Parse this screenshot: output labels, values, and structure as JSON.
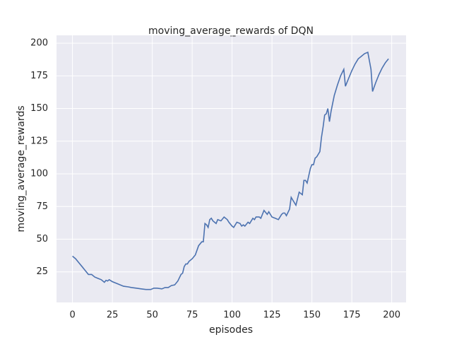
{
  "chart_data": {
    "type": "line",
    "title": "moving_average_rewards of DQN",
    "x_label": "episodes",
    "y_label": "moving_average_rewards",
    "x": [
      0,
      2,
      4,
      6,
      8,
      10,
      12,
      14,
      16,
      18,
      20,
      21,
      22,
      23,
      25,
      28,
      30,
      32,
      35,
      37,
      40,
      43,
      46,
      49,
      51,
      53,
      56,
      58,
      60,
      62,
      64,
      66,
      68,
      69,
      70,
      71,
      72,
      73,
      75,
      77,
      79,
      81,
      82,
      83,
      84,
      85,
      86,
      87,
      88,
      90,
      91,
      93,
      95,
      97,
      98,
      100,
      101,
      103,
      105,
      106,
      107,
      108,
      110,
      111,
      113,
      114,
      115,
      117,
      118,
      120,
      122,
      123,
      125,
      127,
      129,
      131,
      132,
      133,
      134,
      136,
      137,
      138,
      140,
      142,
      143,
      144,
      145,
      146,
      147,
      149,
      150,
      151,
      152,
      153,
      155,
      156,
      157,
      158,
      159,
      160,
      161,
      162,
      164,
      166,
      168,
      170,
      171,
      173,
      175,
      177,
      179,
      181,
      183,
      185,
      187,
      188,
      190,
      192,
      194,
      196,
      198
    ],
    "series": [
      {
        "name": "moving_average_rewards",
        "color": "#4c72b0",
        "values": [
          37,
          35,
          32,
          29,
          26,
          23,
          23,
          21,
          20,
          19,
          17,
          18.5,
          18,
          19,
          17.5,
          16,
          15,
          14,
          13.5,
          13,
          12.5,
          12,
          11.5,
          11.5,
          12.5,
          12.5,
          12,
          13,
          13,
          14.5,
          15,
          18,
          23,
          24,
          29,
          31,
          31,
          33,
          35,
          38,
          45,
          48,
          48,
          62,
          61,
          59,
          65,
          66,
          64,
          62,
          65,
          64,
          67,
          65,
          63,
          60,
          59,
          63,
          62,
          60,
          61,
          60,
          63,
          62,
          66,
          65,
          67,
          67,
          66,
          72,
          69,
          71,
          67,
          66,
          65,
          69,
          70,
          70,
          68,
          73,
          82,
          80,
          76,
          86,
          85,
          84,
          95,
          95,
          93,
          104,
          107,
          107,
          112,
          113,
          117,
          128,
          136,
          145,
          146,
          150,
          140,
          148,
          160,
          168,
          175,
          180,
          167,
          173,
          179,
          184,
          188,
          190,
          192,
          193,
          180,
          163,
          170,
          176,
          181,
          185,
          188
        ]
      }
    ],
    "xlim": [
      -10,
      209
    ],
    "ylim": [
      1.6,
      206
    ],
    "xticks": [
      0,
      25,
      50,
      75,
      100,
      125,
      150,
      175,
      200
    ],
    "yticks": [
      25,
      50,
      75,
      100,
      125,
      150,
      175,
      200
    ],
    "grid": true
  }
}
